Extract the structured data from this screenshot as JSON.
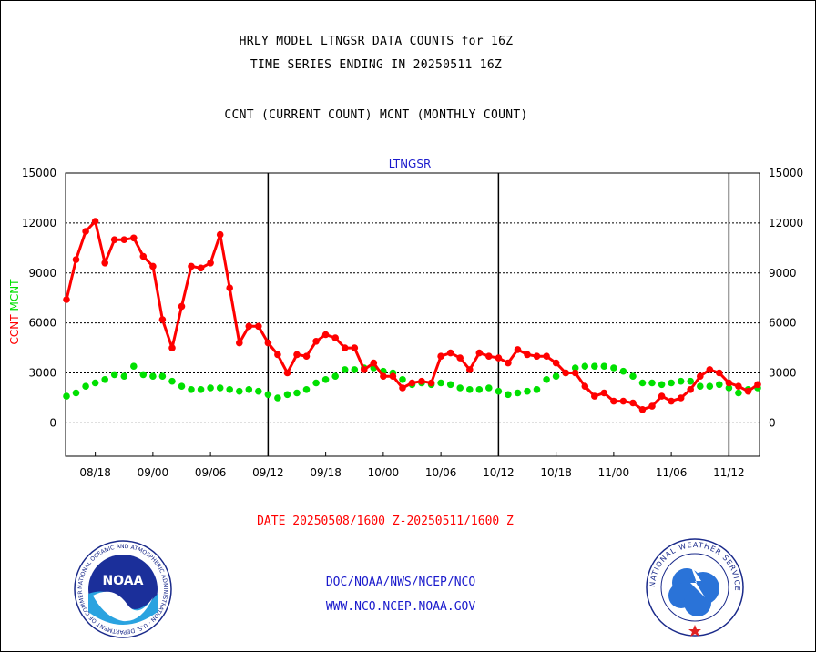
{
  "header": {
    "title_line1": "HRLY MODEL LTNGSR DATA COUNTS for 16Z",
    "title_line2": "TIME SERIES ENDING IN 20250511 16Z",
    "subtitle": "CCNT (CURRENT COUNT) MCNT (MONTHLY COUNT)"
  },
  "footer": {
    "date_range": "DATE 20250508/1600 Z-20250511/1600 Z",
    "credit_line1": "DOC/NOAA/NWS/NCEP/NCO",
    "credit_line2": "WWW.NCO.NCEP.NOAA.GOV"
  },
  "logos": {
    "noaa_label": "NOAA",
    "noaa_ring_text": "NATIONAL OCEANIC AND ATMOSPHERIC ADMINISTRATION · U.S. DEPARTMENT OF COMMERCE",
    "nws_ring_text": "NATIONAL WEATHER SERVICE"
  },
  "colors": {
    "ccnt": "#ff0000",
    "mcnt": "#00e000",
    "plot_title": "#1a1acc"
  },
  "chart_data": {
    "type": "line",
    "title": "LTNGSR",
    "ylabel_series": [
      "CCNT",
      "MCNT"
    ],
    "ylim": [
      -2000,
      15000
    ],
    "yticks": [
      0,
      3000,
      6000,
      9000,
      12000,
      15000
    ],
    "grid": "horizontal dotted at y ticks",
    "x_tick_labels": [
      "08/18",
      "09/00",
      "09/06",
      "09/12",
      "09/18",
      "10/00",
      "10/06",
      "10/12",
      "10/18",
      "11/00",
      "11/06",
      "11/12"
    ],
    "x_tick_index": [
      3,
      9,
      15,
      21,
      27,
      33,
      39,
      45,
      51,
      57,
      63,
      69
    ],
    "day_boundary_index": [
      21,
      45,
      69
    ],
    "n_points": 73,
    "series": [
      {
        "name": "CCNT",
        "color": "#ff0000",
        "values": [
          7400,
          9800,
          11500,
          12100,
          9600,
          11000,
          11000,
          11100,
          10000,
          9400,
          6200,
          4500,
          7000,
          9400,
          9300,
          9600,
          11300,
          8100,
          4800,
          5800,
          5800,
          4800,
          4100,
          3000,
          4100,
          4000,
          4900,
          5300,
          5100,
          4500,
          4500,
          3200,
          3600,
          2800,
          2800,
          2100,
          2400,
          2500,
          2400,
          4000,
          4200,
          3900,
          3200,
          4200,
          4000,
          3900,
          3600,
          4400,
          4100,
          4000,
          4000,
          3600,
          3000,
          3000,
          2200,
          1600,
          1800,
          1300,
          1300,
          1200,
          800,
          1000,
          1600,
          1300,
          1500,
          2000,
          2800,
          3200,
          3000,
          2400,
          2200,
          1900,
          2300
        ]
      },
      {
        "name": "MCNT",
        "color": "#00e000",
        "values": [
          1600,
          1800,
          2200,
          2400,
          2600,
          2900,
          2800,
          3400,
          2900,
          2800,
          2800,
          2500,
          2200,
          2000,
          2000,
          2100,
          2100,
          2000,
          1900,
          2000,
          1900,
          1700,
          1500,
          1700,
          1800,
          2000,
          2400,
          2600,
          2800,
          3200,
          3200,
          3300,
          3300,
          3100,
          3000,
          2600,
          2300,
          2400,
          2300,
          2400,
          2300,
          2100,
          2000,
          2000,
          2100,
          1900,
          1700,
          1800,
          1900,
          2000,
          2600,
          2800,
          3000,
          3300,
          3400,
          3400,
          3400,
          3300,
          3100,
          2800,
          2400,
          2400,
          2300,
          2400,
          2500,
          2500,
          2200,
          2200,
          2300,
          2100,
          1800,
          2000,
          2100
        ]
      }
    ]
  }
}
